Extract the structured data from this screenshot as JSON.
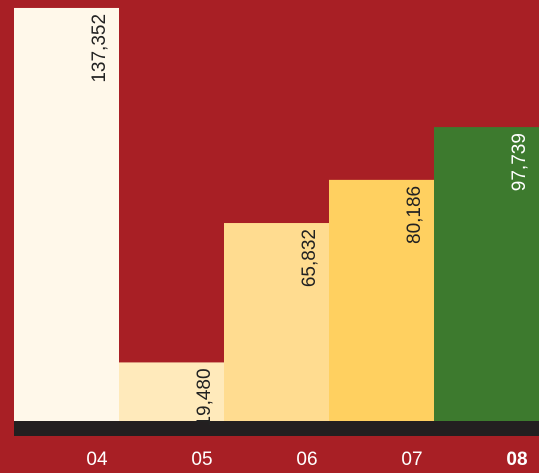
{
  "chart_data": {
    "type": "bar",
    "categories": [
      "04",
      "05",
      "06",
      "07",
      "08"
    ],
    "values": [
      137352,
      19480,
      65832,
      80186,
      97739
    ],
    "value_labels": [
      "137,352",
      "19,480",
      "65,832",
      "80,186",
      "97,739"
    ],
    "colors": [
      "#fff8ea",
      "#ffeabb",
      "#ffdc90",
      "#ffd060",
      "#3d7a2e"
    ],
    "label_colors": [
      "#222222",
      "#222222",
      "#222222",
      "#222222",
      "#ffffff"
    ],
    "highlight": "08",
    "background": "#a81f25",
    "ylim": [
      0,
      140000
    ]
  }
}
